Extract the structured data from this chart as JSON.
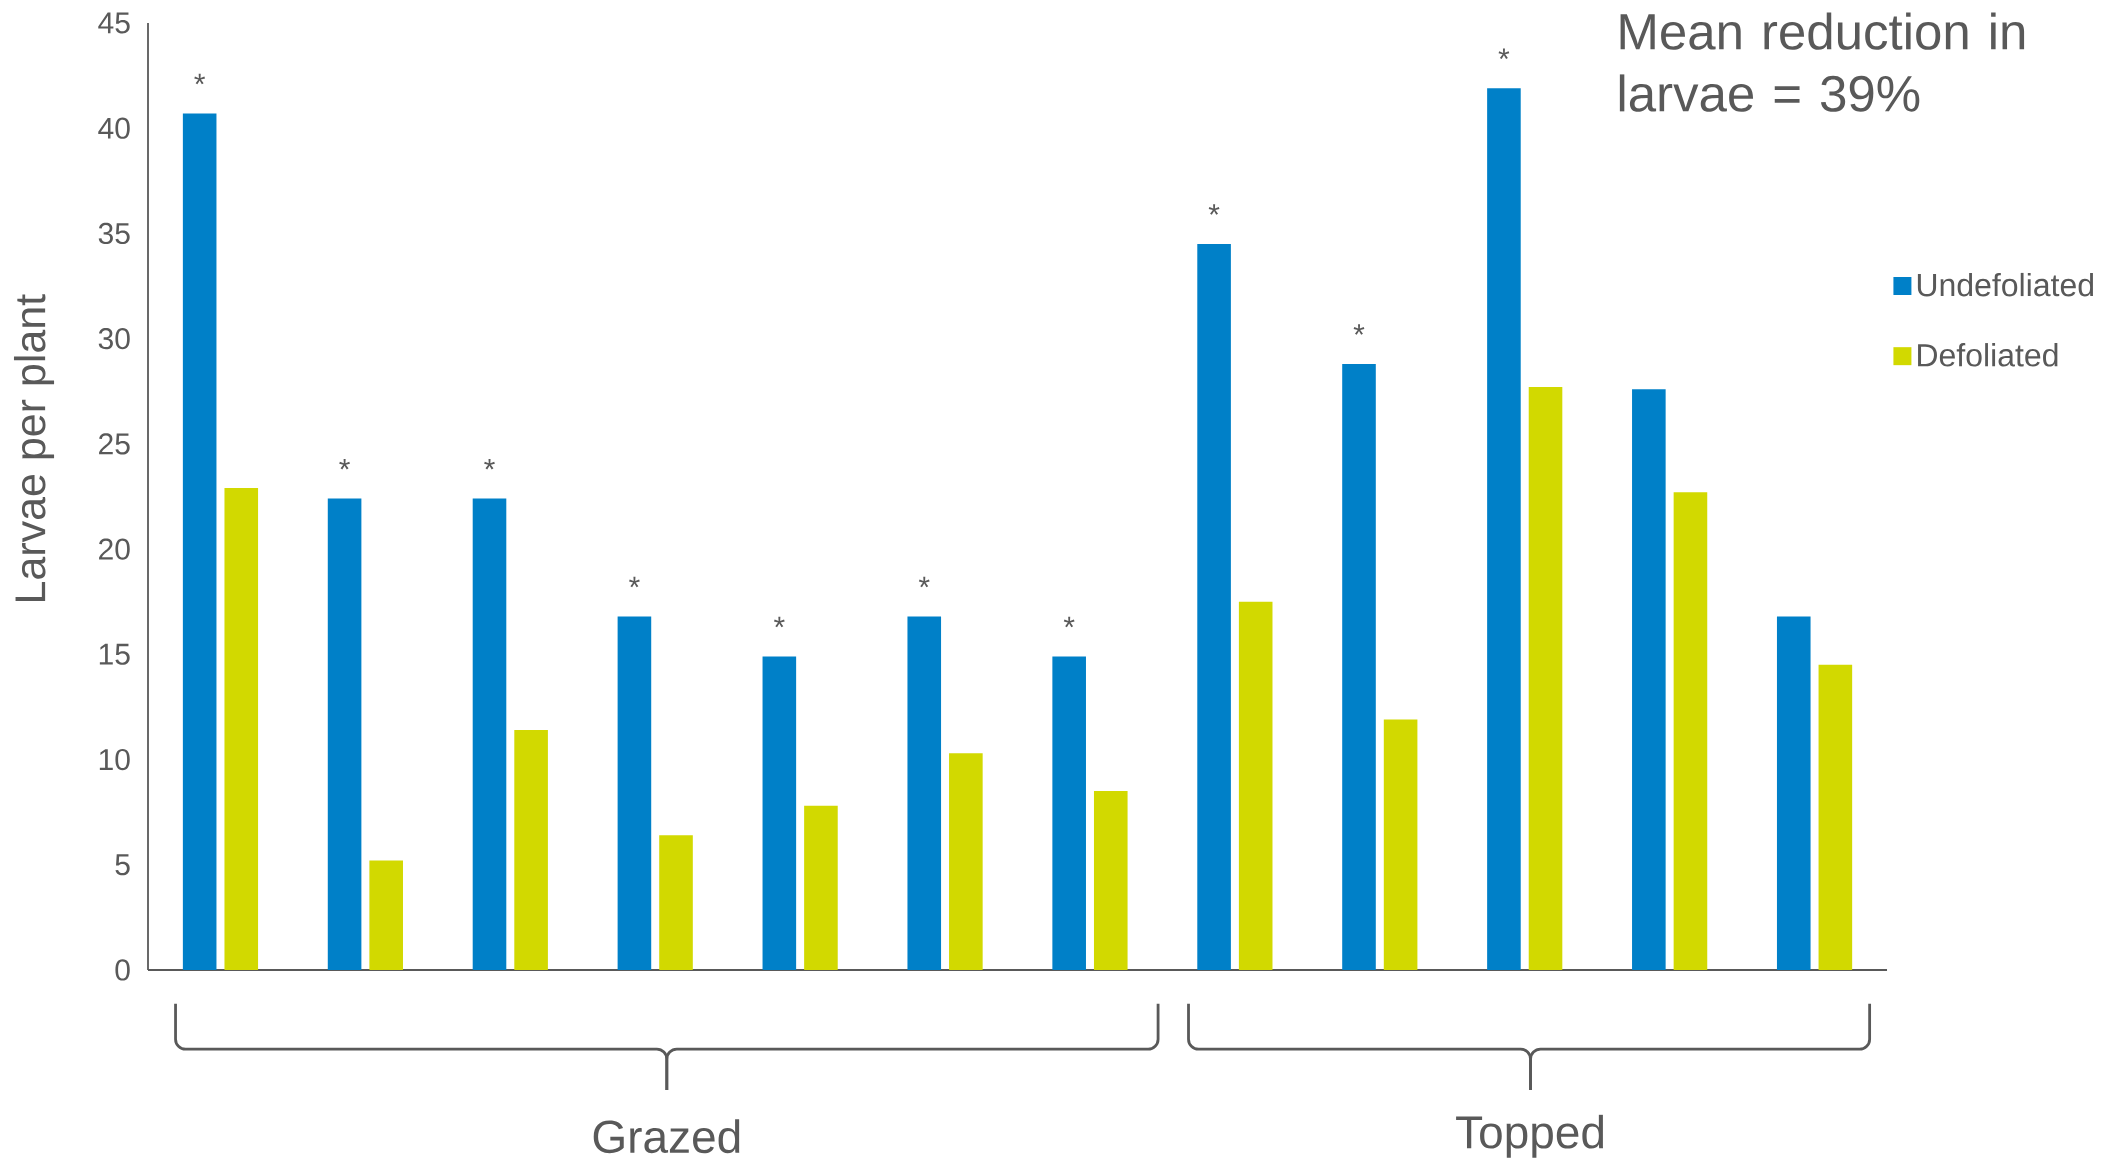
{
  "chart_data": {
    "type": "bar",
    "ylabel": "Larvae per plant",
    "categories": [
      null,
      null,
      null,
      null,
      null,
      null,
      null,
      null,
      null,
      null,
      null,
      null
    ],
    "series": [
      {
        "name": "Undefoliated",
        "color": "#0080c8",
        "values": [
          40.7,
          22.4,
          22.4,
          16.8,
          14.9,
          16.8,
          14.9,
          34.5,
          28.8,
          41.9,
          27.6,
          16.8
        ],
        "value_labels": [
          "*",
          "*",
          "*",
          "*",
          "*",
          "*",
          "*",
          "*",
          "*",
          "*",
          null,
          null
        ]
      },
      {
        "name": "Defoliated",
        "color": "#d2d900",
        "values": [
          22.9,
          5.2,
          11.4,
          6.4,
          7.8,
          10.3,
          8.5,
          17.5,
          11.9,
          27.7,
          22.7,
          14.5
        ]
      }
    ],
    "ylim": [
      0,
      45
    ],
    "yticks": [
      0,
      5,
      10,
      15,
      20,
      25,
      30,
      35,
      40,
      45
    ],
    "legend": "right",
    "annotations": [
      "Mean reduction in larvae = 39%",
      "Grazed",
      "Topped"
    ]
  }
}
